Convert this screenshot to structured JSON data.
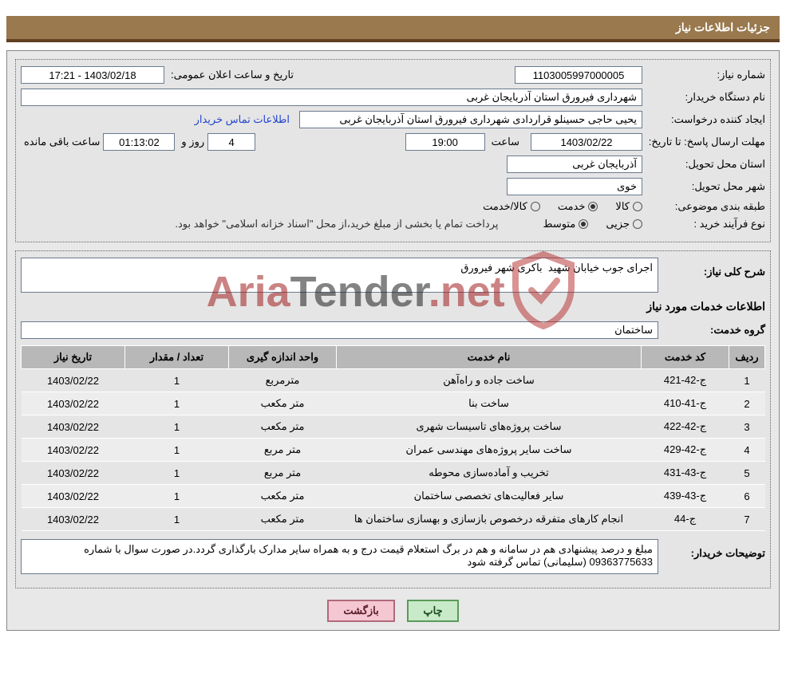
{
  "header": {
    "title": "جزئیات اطلاعات نیاز"
  },
  "req": {
    "number_label": "شماره نیاز:",
    "number": "1103005997000005",
    "announce_label": "تاریخ و ساعت اعلان عمومی:",
    "announce": "1403/02/18 - 17:21",
    "org_label": "نام دستگاه خریدار:",
    "org": "شهرداری فیرورق استان آذربایجان غربی",
    "creator_label": "ایجاد کننده درخواست:",
    "creator": "یحیی حاجی حسینلو قراردادی شهرداری فیرورق استان آذربایجان غربی",
    "buyer_contact": "اطلاعات تماس خریدار",
    "deadline_label": "مهلت ارسال پاسخ: تا تاریخ:",
    "deadline_date": "1403/02/22",
    "hour_label": "ساعت",
    "deadline_hour": "19:00",
    "day_and": "روز و",
    "deadline_days": "4",
    "deadline_counter": "01:13:02",
    "remaining": "ساعت باقی مانده",
    "province_label": "استان محل تحویل:",
    "province": "آذربایجان غربی",
    "city_label": "شهر محل تحویل:",
    "city": "خوی",
    "subject_cat_label": "طبقه بندی موضوعی:",
    "cat_goods": "کالا",
    "cat_service": "خدمت",
    "cat_goods_service": "کالا/خدمت",
    "buy_type_label": "نوع فرآیند خرید :",
    "buy_type_minor": "جزیی",
    "buy_type_medium": "متوسط",
    "payment_note": "پرداخت تمام یا بخشی از مبلغ خرید،از محل \"اسناد خزانه اسلامی\" خواهد بود."
  },
  "desc": {
    "general_label": "شرح کلی نیاز:",
    "general_text": "اجرای جوب خیابان شهید  باکری شهر فیرورق",
    "services_title": "اطلاعات خدمات مورد نیاز",
    "group_label": "گروه خدمت:",
    "group": "ساختمان"
  },
  "table": {
    "headers": {
      "row": "ردیف",
      "code": "کد خدمت",
      "name": "نام خدمت",
      "unit": "واحد اندازه گیری",
      "qty": "تعداد / مقدار",
      "date": "تاریخ نیاز"
    },
    "rows": [
      {
        "idx": "1",
        "code": "ج-42-421",
        "name": "ساخت جاده و راه‌آهن",
        "unit": "مترمربع",
        "qty": "1",
        "date": "1403/02/22"
      },
      {
        "idx": "2",
        "code": "ج-41-410",
        "name": "ساخت بنا",
        "unit": "متر مکعب",
        "qty": "1",
        "date": "1403/02/22"
      },
      {
        "idx": "3",
        "code": "ج-42-422",
        "name": "ساخت پروژه‌های تاسیسات شهری",
        "unit": "متر مکعب",
        "qty": "1",
        "date": "1403/02/22"
      },
      {
        "idx": "4",
        "code": "ج-42-429",
        "name": "ساخت سایر پروژه‌های مهندسی عمران",
        "unit": "متر مربع",
        "qty": "1",
        "date": "1403/02/22"
      },
      {
        "idx": "5",
        "code": "ج-43-431",
        "name": "تخریب و آماده‌سازی محوطه",
        "unit": "متر مربع",
        "qty": "1",
        "date": "1403/02/22"
      },
      {
        "idx": "6",
        "code": "ج-43-439",
        "name": "سایر فعالیت‌های تخصصی ساختمان",
        "unit": "متر مکعب",
        "qty": "1",
        "date": "1403/02/22"
      },
      {
        "idx": "7",
        "code": "ج-44",
        "name": "انجام کارهای متفرقه درخصوص بازسازی و بهسازی ساختمان ها",
        "unit": "متر مکعب",
        "qty": "1",
        "date": "1403/02/22"
      }
    ]
  },
  "buyer_desc": {
    "label": "توضیحات خریدار:",
    "text": "مبلغ و درصد پیشنهادی هم در سامانه و هم در برگ استعلام قیمت درج و به همراه سایر مدارک بارگذاری گردد.در صورت سوال با شماره 09363775633 (سلیمانی) تماس گرفته شود"
  },
  "buttons": {
    "print": "چاپ",
    "back": "بازگشت"
  },
  "watermark": {
    "a": "Aria",
    "b": "Tender",
    "c": ".net"
  },
  "colors": {
    "header_bg": "#99794d",
    "header_border": "#604020",
    "box_bg": "#e8e8e8",
    "field_border": "#6b7a8f",
    "th_bg": "#b8b8b8"
  }
}
